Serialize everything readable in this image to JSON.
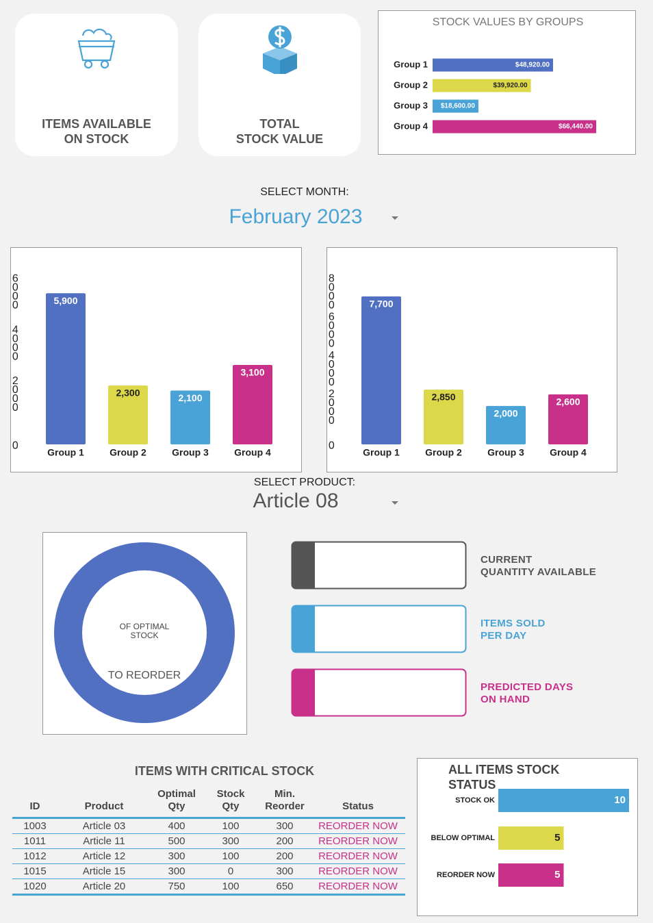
{
  "cards": [
    {
      "lines": [
        "ITEMS AVAILABLE",
        "ON STOCK"
      ]
    },
    {
      "lines": [
        "TOTAL",
        "STOCK VALUE"
      ]
    }
  ],
  "month_select": {
    "label": "SELECT MONTH:",
    "value": "February 2023"
  },
  "product_select": {
    "label": "SELECT PRODUCT:",
    "value": "Article 08"
  },
  "donut": {
    "center_lines": [
      "OF OPTIMAL",
      "STOCK"
    ],
    "bottom": "TO REORDER"
  },
  "indicators": [
    {
      "lines": [
        "CURRENT",
        "QUANTITY AVAILABLE"
      ]
    },
    {
      "lines": [
        "ITEMS SOLD",
        "PER DAY"
      ]
    },
    {
      "lines": [
        "PREDICTED DAYS",
        "ON HAND"
      ]
    }
  ],
  "critical_table": {
    "title": "ITEMS WITH CRITICAL STOCK",
    "columns": [
      "ID",
      "Product",
      "Optimal Qty",
      "Stock Qty",
      "Min. Reorder",
      "Status"
    ],
    "rows": [
      [
        "1003",
        "Article 03",
        400,
        100,
        300,
        "REORDER NOW"
      ],
      [
        "1011",
        "Article 11",
        500,
        300,
        200,
        "REORDER NOW"
      ],
      [
        "1012",
        "Article 12",
        300,
        100,
        200,
        "REORDER NOW"
      ],
      [
        "1015",
        "Article 15",
        300,
        0,
        300,
        "REORDER NOW"
      ],
      [
        "1020",
        "Article 20",
        750,
        100,
        650,
        "REORDER NOW"
      ]
    ]
  },
  "chart_data": [
    {
      "type": "bar",
      "orientation": "horizontal",
      "title": "STOCK VALUES BY GROUPS",
      "categories": [
        "Group 1",
        "Group 2",
        "Group 3",
        "Group 4"
      ],
      "values": [
        48920,
        39920,
        18600,
        66440
      ],
      "value_labels": [
        "$48,920.00",
        "$39,920.00",
        "$18,600.00",
        "$66,440.00"
      ],
      "colors": [
        "#5170c2",
        "#dcd84a",
        "#4aa3d6",
        "#c8308a"
      ]
    },
    {
      "type": "bar",
      "orientation": "vertical",
      "categories": [
        "Group 1",
        "Group 2",
        "Group 3",
        "Group 4"
      ],
      "values": [
        5900,
        2300,
        2100,
        3100
      ],
      "value_labels": [
        "5,900",
        "2,300",
        "2,100",
        "3,100"
      ],
      "colors": [
        "#5170c2",
        "#dcd84a",
        "#4aa3d6",
        "#c8308a"
      ],
      "ylim": [
        0,
        6000
      ],
      "yticks": [
        0,
        2000,
        4000,
        6000
      ],
      "grid": false
    },
    {
      "type": "bar",
      "orientation": "vertical",
      "categories": [
        "Group 1",
        "Group 2",
        "Group 3",
        "Group 4"
      ],
      "values": [
        7700,
        2850,
        2000,
        2600
      ],
      "value_labels": [
        "7,700",
        "2,850",
        "2,000",
        "2,600"
      ],
      "colors": [
        "#5170c2",
        "#dcd84a",
        "#4aa3d6",
        "#c8308a"
      ],
      "ylim": [
        0,
        8000
      ],
      "yticks": [
        0,
        2000,
        4000,
        6000,
        8000
      ],
      "grid": false
    },
    {
      "type": "bar",
      "orientation": "horizontal",
      "title": "ALL ITEMS STOCK STATUS",
      "categories": [
        "STOCK OK",
        "BELOW OPTIMAL",
        "REORDER NOW"
      ],
      "values": [
        10,
        5,
        5
      ],
      "colors": [
        "#4aa3d6",
        "#dcd84a",
        "#c8308a"
      ]
    }
  ]
}
